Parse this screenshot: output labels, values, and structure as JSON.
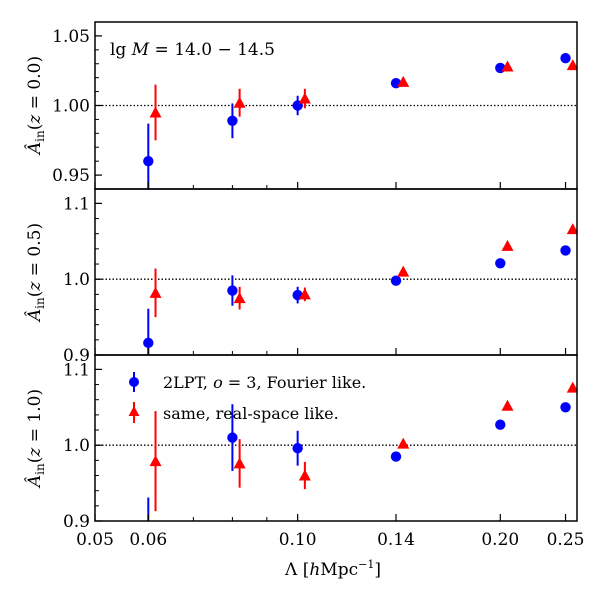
{
  "chart_data": [
    {
      "type": "scatter",
      "panel": "top",
      "annotation": {
        "prefix": "lg ",
        "var": "M",
        "rest": " = 14.0 − 14.5"
      },
      "ylabel": {
        "symbol": "Â",
        "sub": "in",
        "arg_open": "(",
        "var": "z",
        "arg_rest": " = 0.0)"
      },
      "ylim": [
        0.94,
        1.06
      ],
      "yticks": [
        0.95,
        1.0,
        1.05
      ],
      "ytick_labels": [
        "0.95",
        "1.00",
        "1.05"
      ],
      "reference_line": 1.0,
      "series": [
        {
          "name": "2LPT, o = 3, Fourier like.",
          "marker": "circle",
          "color": "#0000ff",
          "x": [
            0.06,
            0.08,
            0.1,
            0.14,
            0.2,
            0.25
          ],
          "y": [
            0.96,
            0.989,
            1.0,
            1.016,
            1.027,
            1.034
          ],
          "yerr": [
            0.027,
            0.0125,
            0.007,
            0,
            0,
            0
          ]
        },
        {
          "name": "same, real-space like.",
          "marker": "triangle",
          "color": "#ff0000",
          "x": [
            0.06,
            0.08,
            0.1,
            0.14,
            0.2,
            0.25
          ],
          "y": [
            0.995,
            1.002,
            1.005,
            1.017,
            1.028,
            1.029
          ],
          "yerr": [
            0.02,
            0.01,
            0.007,
            0,
            0,
            0
          ]
        }
      ]
    },
    {
      "type": "scatter",
      "panel": "middle",
      "ylabel": {
        "symbol": "Â",
        "sub": "in",
        "arg_open": "(",
        "var": "z",
        "arg_rest": " = 0.5)"
      },
      "ylim": [
        0.9,
        1.119
      ],
      "yticks": [
        0.9,
        1.0,
        1.1
      ],
      "ytick_labels": [
        "0.9",
        "1.0",
        "1.1"
      ],
      "reference_line": 1.0,
      "series": [
        {
          "name": "2LPT, o = 3, Fourier like.",
          "marker": "circle",
          "color": "#0000ff",
          "x": [
            0.06,
            0.08,
            0.1,
            0.14,
            0.2,
            0.25
          ],
          "y": [
            0.916,
            0.985,
            0.979,
            0.998,
            1.021,
            1.038
          ],
          "yerr": [
            0.045,
            0.02,
            0.011,
            0,
            0,
            0
          ]
        },
        {
          "name": "same, real-space like.",
          "marker": "triangle",
          "color": "#ff0000",
          "x": [
            0.06,
            0.08,
            0.1,
            0.14,
            0.2,
            0.25
          ],
          "y": [
            0.982,
            0.975,
            0.98,
            1.01,
            1.044,
            1.066
          ],
          "yerr": [
            0.032,
            0.015,
            0.009,
            0,
            0,
            0
          ]
        }
      ]
    },
    {
      "type": "scatter",
      "panel": "bottom",
      "ylabel": {
        "symbol": "Â",
        "sub": "in",
        "arg_open": "(",
        "var": "z",
        "arg_rest": " = 1.0)"
      },
      "ylim": [
        0.9,
        1.119
      ],
      "yticks": [
        0.9,
        1.0,
        1.1
      ],
      "ytick_labels": [
        "0.9",
        "1.0",
        "1.1"
      ],
      "reference_line": 1.0,
      "xlabel": {
        "pre": "Λ [",
        "var": "h",
        "unit": "Mpc",
        "exp": "−1",
        "post": "]"
      },
      "xscale": "log",
      "xlim": [
        0.05,
        0.26
      ],
      "xticks": [
        0.05,
        0.06,
        0.1,
        0.14,
        0.2,
        0.25
      ],
      "xtick_labels": [
        "0.05",
        "0.06",
        "0.10",
        "0.14",
        "0.20",
        "0.25"
      ],
      "legend": {
        "placement": "upper-left",
        "items": [
          {
            "pre": "2LPT, ",
            "var": "o",
            "post": " = 3, Fourier like."
          },
          {
            "pre": "same, real-space like.",
            "var": "",
            "post": ""
          }
        ]
      },
      "series": [
        {
          "name": "2LPT, o = 3, Fourier like.",
          "marker": "circle",
          "color": "#0000ff",
          "x": [
            0.06,
            0.08,
            0.1,
            0.14,
            0.2,
            0.25
          ],
          "y": [
            0.89,
            1.01,
            0.996,
            0.985,
            1.027,
            1.05
          ],
          "yerr": [
            0.041,
            0.044,
            0.023,
            0.004,
            0,
            0
          ]
        },
        {
          "name": "same, real-space like.",
          "marker": "triangle",
          "color": "#ff0000",
          "x": [
            0.06,
            0.08,
            0.1,
            0.14,
            0.2,
            0.25
          ],
          "y": [
            0.979,
            0.976,
            0.96,
            1.002,
            1.052,
            1.076
          ],
          "yerr": [
            0.066,
            0.032,
            0.018,
            0,
            0,
            0
          ]
        }
      ]
    }
  ]
}
